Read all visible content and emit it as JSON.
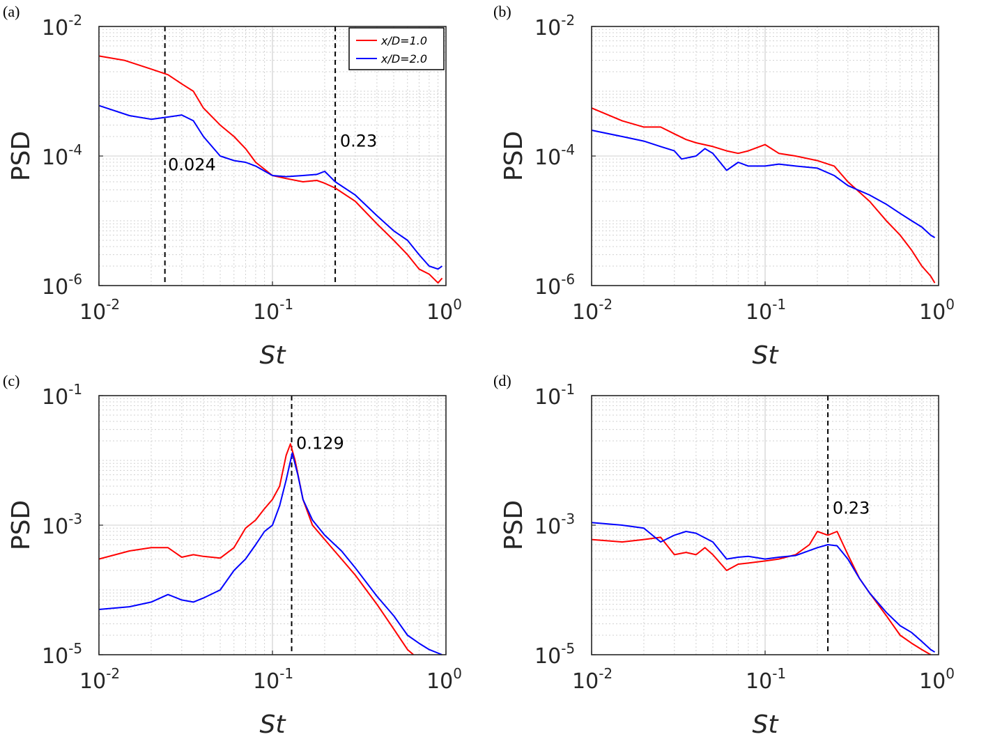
{
  "figure": {
    "colors": {
      "series1": "#ff0000",
      "series2": "#0000ff",
      "grid": "#d0d0d0",
      "axis": "#262626",
      "marker": "#000000"
    }
  },
  "chart_data": [
    {
      "panel": "(a)",
      "type": "line",
      "xscale": "log",
      "yscale": "log",
      "xlabel": "St",
      "ylabel": "PSD",
      "xlim": [
        0.01,
        1
      ],
      "ylim": [
        1e-06,
        0.01
      ],
      "xticks": [
        {
          "base": "10",
          "exp": "-2"
        },
        {
          "base": "10",
          "exp": "-1"
        },
        {
          "base": "10",
          "exp": "0"
        }
      ],
      "yticks": [
        {
          "base": "10",
          "exp": "-6"
        },
        {
          "base": "10",
          "exp": "-4"
        },
        {
          "base": "10",
          "exp": "-2"
        }
      ],
      "grid": true,
      "legend": {
        "position": "top-right",
        "entries": [
          "x/D=1.0",
          "x/D=2.0"
        ]
      },
      "vlines": [
        {
          "x": 0.024,
          "label": "0.024",
          "label_x": 0.025,
          "label_y": 6e-05
        },
        {
          "x": 0.23,
          "label": "0.23",
          "label_x": 0.245,
          "label_y": 0.00014
        }
      ],
      "series": [
        {
          "name": "x/D=1.0",
          "color": "#ff0000",
          "points": [
            [
              0.01,
              0.0035
            ],
            [
              0.014,
              0.003
            ],
            [
              0.02,
              0.0022
            ],
            [
              0.025,
              0.0018
            ],
            [
              0.03,
              0.0013
            ],
            [
              0.035,
              0.001
            ],
            [
              0.04,
              0.00055
            ],
            [
              0.05,
              0.0003
            ],
            [
              0.06,
              0.0002
            ],
            [
              0.07,
              0.00013
            ],
            [
              0.08,
              8e-05
            ],
            [
              0.1,
              5e-05
            ],
            [
              0.12,
              4.5e-05
            ],
            [
              0.15,
              4e-05
            ],
            [
              0.18,
              4.2e-05
            ],
            [
              0.2,
              3.8e-05
            ],
            [
              0.23,
              3.2e-05
            ],
            [
              0.3,
              2e-05
            ],
            [
              0.4,
              9e-06
            ],
            [
              0.5,
              5e-06
            ],
            [
              0.6,
              3e-06
            ],
            [
              0.7,
              1.8e-06
            ],
            [
              0.8,
              1.5e-06
            ],
            [
              0.9,
              1.1e-06
            ],
            [
              0.95,
              1.3e-06
            ]
          ]
        },
        {
          "name": "x/D=2.0",
          "color": "#0000ff",
          "points": [
            [
              0.01,
              0.0006
            ],
            [
              0.015,
              0.00042
            ],
            [
              0.02,
              0.00037
            ],
            [
              0.025,
              0.0004
            ],
            [
              0.03,
              0.00043
            ],
            [
              0.035,
              0.00035
            ],
            [
              0.04,
              0.0002
            ],
            [
              0.05,
              0.0001
            ],
            [
              0.06,
              8.5e-05
            ],
            [
              0.07,
              8e-05
            ],
            [
              0.08,
              7e-05
            ],
            [
              0.1,
              5e-05
            ],
            [
              0.12,
              4.8e-05
            ],
            [
              0.15,
              5e-05
            ],
            [
              0.18,
              5.2e-05
            ],
            [
              0.2,
              5.8e-05
            ],
            [
              0.23,
              4e-05
            ],
            [
              0.3,
              2.5e-05
            ],
            [
              0.4,
              1.2e-05
            ],
            [
              0.5,
              7e-06
            ],
            [
              0.6,
              5e-06
            ],
            [
              0.7,
              3e-06
            ],
            [
              0.8,
              2e-06
            ],
            [
              0.9,
              1.8e-06
            ],
            [
              0.95,
              2e-06
            ]
          ]
        }
      ]
    },
    {
      "panel": "(b)",
      "type": "line",
      "xscale": "log",
      "yscale": "log",
      "xlabel": "St",
      "ylabel": "PSD",
      "xlim": [
        0.01,
        1
      ],
      "ylim": [
        1e-06,
        0.01
      ],
      "xticks": [
        {
          "base": "10",
          "exp": "-2"
        },
        {
          "base": "10",
          "exp": "-1"
        },
        {
          "base": "10",
          "exp": "0"
        }
      ],
      "yticks": [
        {
          "base": "10",
          "exp": "-6"
        },
        {
          "base": "10",
          "exp": "-4"
        },
        {
          "base": "10",
          "exp": "-2"
        }
      ],
      "grid": true,
      "vlines": [],
      "series": [
        {
          "name": "x/D=1.0",
          "color": "#ff0000",
          "points": [
            [
              0.01,
              0.00055
            ],
            [
              0.015,
              0.00035
            ],
            [
              0.02,
              0.00028
            ],
            [
              0.025,
              0.00028
            ],
            [
              0.03,
              0.00022
            ],
            [
              0.035,
              0.00018
            ],
            [
              0.04,
              0.00016
            ],
            [
              0.05,
              0.00014
            ],
            [
              0.06,
              0.00012
            ],
            [
              0.07,
              0.00011
            ],
            [
              0.08,
              0.00012
            ],
            [
              0.1,
              0.00015
            ],
            [
              0.12,
              0.00011
            ],
            [
              0.15,
              0.0001
            ],
            [
              0.2,
              8.5e-05
            ],
            [
              0.25,
              7e-05
            ],
            [
              0.3,
              4e-05
            ],
            [
              0.4,
              2e-05
            ],
            [
              0.5,
              1e-05
            ],
            [
              0.6,
              6e-06
            ],
            [
              0.7,
              3.5e-06
            ],
            [
              0.8,
              2e-06
            ],
            [
              0.9,
              1.4e-06
            ],
            [
              0.95,
              1.1e-06
            ]
          ]
        },
        {
          "name": "x/D=2.0",
          "color": "#0000ff",
          "points": [
            [
              0.01,
              0.00025
            ],
            [
              0.015,
              0.0002
            ],
            [
              0.02,
              0.00017
            ],
            [
              0.025,
              0.00014
            ],
            [
              0.03,
              0.00012
            ],
            [
              0.033,
              9e-05
            ],
            [
              0.04,
              0.0001
            ],
            [
              0.045,
              0.00013
            ],
            [
              0.05,
              0.00011
            ],
            [
              0.06,
              6e-05
            ],
            [
              0.07,
              8e-05
            ],
            [
              0.08,
              7e-05
            ],
            [
              0.1,
              7e-05
            ],
            [
              0.12,
              7.5e-05
            ],
            [
              0.15,
              7e-05
            ],
            [
              0.2,
              6.5e-05
            ],
            [
              0.25,
              5e-05
            ],
            [
              0.3,
              3.5e-05
            ],
            [
              0.4,
              2.5e-05
            ],
            [
              0.5,
              1.8e-05
            ],
            [
              0.6,
              1.3e-05
            ],
            [
              0.7,
              1e-05
            ],
            [
              0.8,
              8e-06
            ],
            [
              0.9,
              6e-06
            ],
            [
              0.95,
              5.5e-06
            ]
          ]
        }
      ]
    },
    {
      "panel": "(c)",
      "type": "line",
      "xscale": "log",
      "yscale": "log",
      "xlabel": "St",
      "ylabel": "PSD",
      "xlim": [
        0.01,
        1
      ],
      "ylim": [
        1e-05,
        0.1
      ],
      "xticks": [
        {
          "base": "10",
          "exp": "-2"
        },
        {
          "base": "10",
          "exp": "-1"
        },
        {
          "base": "10",
          "exp": "0"
        }
      ],
      "yticks": [
        {
          "base": "10",
          "exp": "-5"
        },
        {
          "base": "10",
          "exp": "-3"
        },
        {
          "base": "10",
          "exp": "-1"
        }
      ],
      "grid": true,
      "vlines": [
        {
          "x": 0.129,
          "label": "0.129",
          "label_x": 0.137,
          "label_y": 0.015
        }
      ],
      "series": [
        {
          "name": "x/D=1.0",
          "color": "#ff0000",
          "points": [
            [
              0.01,
              0.0003
            ],
            [
              0.015,
              0.0004
            ],
            [
              0.02,
              0.00045
            ],
            [
              0.025,
              0.00045
            ],
            [
              0.03,
              0.00032
            ],
            [
              0.035,
              0.00035
            ],
            [
              0.04,
              0.00033
            ],
            [
              0.05,
              0.00031
            ],
            [
              0.06,
              0.00045
            ],
            [
              0.07,
              0.0009
            ],
            [
              0.08,
              0.0012
            ],
            [
              0.09,
              0.0018
            ],
            [
              0.1,
              0.0025
            ],
            [
              0.11,
              0.004
            ],
            [
              0.12,
              0.012
            ],
            [
              0.127,
              0.018
            ],
            [
              0.135,
              0.01
            ],
            [
              0.15,
              0.0025
            ],
            [
              0.17,
              0.001
            ],
            [
              0.2,
              0.0006
            ],
            [
              0.25,
              0.0003
            ],
            [
              0.3,
              0.00017
            ],
            [
              0.4,
              6e-05
            ],
            [
              0.5,
              2.5e-05
            ],
            [
              0.6,
              1.2e-05
            ],
            [
              0.65,
              1e-05
            ]
          ]
        },
        {
          "name": "x/D=2.0",
          "color": "#0000ff",
          "points": [
            [
              0.01,
              5e-05
            ],
            [
              0.015,
              5.5e-05
            ],
            [
              0.02,
              6.5e-05
            ],
            [
              0.025,
              8.5e-05
            ],
            [
              0.03,
              7e-05
            ],
            [
              0.035,
              6.5e-05
            ],
            [
              0.04,
              7.5e-05
            ],
            [
              0.05,
              0.0001
            ],
            [
              0.06,
              0.0002
            ],
            [
              0.07,
              0.0003
            ],
            [
              0.08,
              0.0005
            ],
            [
              0.09,
              0.0008
            ],
            [
              0.1,
              0.001
            ],
            [
              0.11,
              0.002
            ],
            [
              0.12,
              0.005
            ],
            [
              0.13,
              0.013
            ],
            [
              0.14,
              0.006
            ],
            [
              0.15,
              0.0025
            ],
            [
              0.17,
              0.0012
            ],
            [
              0.2,
              0.0007
            ],
            [
              0.25,
              0.0004
            ],
            [
              0.3,
              0.00022
            ],
            [
              0.4,
              8e-05
            ],
            [
              0.5,
              4e-05
            ],
            [
              0.6,
              2e-05
            ],
            [
              0.7,
              1.5e-05
            ],
            [
              0.8,
              1.2e-05
            ],
            [
              0.95,
              1e-05
            ]
          ]
        }
      ]
    },
    {
      "panel": "(d)",
      "type": "line",
      "xscale": "log",
      "yscale": "log",
      "xlabel": "St",
      "ylabel": "PSD",
      "xlim": [
        0.01,
        1
      ],
      "ylim": [
        1e-05,
        0.1
      ],
      "xticks": [
        {
          "base": "10",
          "exp": "-2"
        },
        {
          "base": "10",
          "exp": "-1"
        },
        {
          "base": "10",
          "exp": "0"
        }
      ],
      "yticks": [
        {
          "base": "10",
          "exp": "-5"
        },
        {
          "base": "10",
          "exp": "-3"
        },
        {
          "base": "10",
          "exp": "-1"
        }
      ],
      "grid": true,
      "vlines": [
        {
          "x": 0.23,
          "label": "0.23",
          "label_x": 0.245,
          "label_y": 0.0015
        }
      ],
      "series": [
        {
          "name": "x/D=1.0",
          "color": "#ff0000",
          "points": [
            [
              0.01,
              0.0006
            ],
            [
              0.015,
              0.00055
            ],
            [
              0.02,
              0.0006
            ],
            [
              0.025,
              0.00065
            ],
            [
              0.03,
              0.00035
            ],
            [
              0.035,
              0.00038
            ],
            [
              0.04,
              0.00035
            ],
            [
              0.045,
              0.00045
            ],
            [
              0.05,
              0.00035
            ],
            [
              0.06,
              0.0002
            ],
            [
              0.07,
              0.00025
            ],
            [
              0.08,
              0.00026
            ],
            [
              0.1,
              0.00028
            ],
            [
              0.12,
              0.0003
            ],
            [
              0.15,
              0.00035
            ],
            [
              0.18,
              0.0005
            ],
            [
              0.2,
              0.0008
            ],
            [
              0.23,
              0.0007
            ],
            [
              0.26,
              0.0008
            ],
            [
              0.3,
              0.00035
            ],
            [
              0.35,
              0.00015
            ],
            [
              0.4,
              9e-05
            ],
            [
              0.5,
              4e-05
            ],
            [
              0.6,
              2e-05
            ],
            [
              0.7,
              1.5e-05
            ],
            [
              0.8,
              1.2e-05
            ],
            [
              0.9,
              1e-05
            ]
          ]
        },
        {
          "name": "x/D=2.0",
          "color": "#0000ff",
          "points": [
            [
              0.01,
              0.0011
            ],
            [
              0.015,
              0.001
            ],
            [
              0.02,
              0.0009
            ],
            [
              0.025,
              0.00055
            ],
            [
              0.03,
              0.0007
            ],
            [
              0.035,
              0.0008
            ],
            [
              0.04,
              0.00075
            ],
            [
              0.05,
              0.00055
            ],
            [
              0.06,
              0.0003
            ],
            [
              0.07,
              0.00032
            ],
            [
              0.08,
              0.00033
            ],
            [
              0.1,
              0.0003
            ],
            [
              0.12,
              0.00032
            ],
            [
              0.15,
              0.00034
            ],
            [
              0.2,
              0.00045
            ],
            [
              0.23,
              0.0005
            ],
            [
              0.26,
              0.00048
            ],
            [
              0.3,
              0.0003
            ],
            [
              0.35,
              0.00015
            ],
            [
              0.4,
              9e-05
            ],
            [
              0.5,
              4.5e-05
            ],
            [
              0.6,
              2.8e-05
            ],
            [
              0.7,
              2.2e-05
            ],
            [
              0.8,
              1.6e-05
            ],
            [
              0.9,
              1.2e-05
            ],
            [
              0.95,
              1.1e-05
            ]
          ]
        }
      ]
    }
  ]
}
